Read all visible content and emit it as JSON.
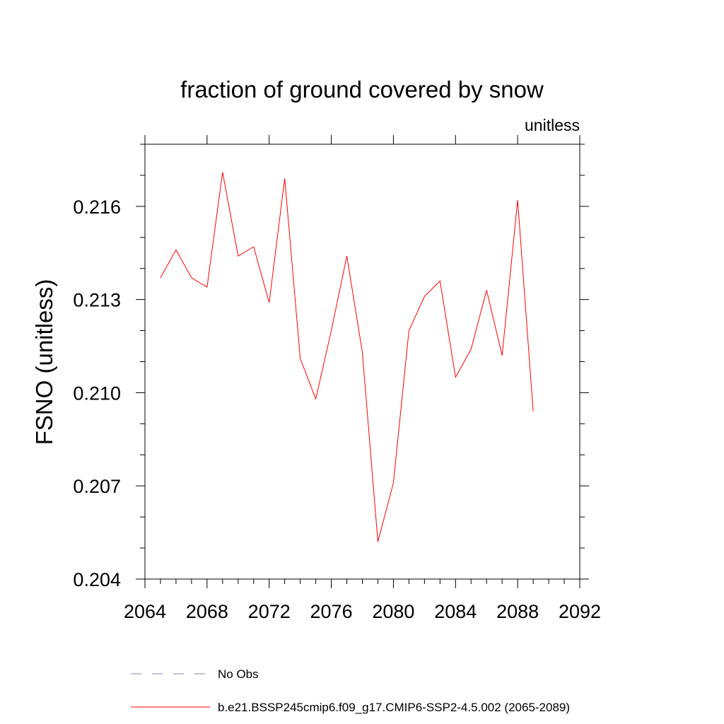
{
  "chart_data": {
    "type": "line",
    "title": "fraction of ground covered by snow",
    "subtitle": "unitless",
    "xlabel": "",
    "ylabel": "FSNO  (unitless)",
    "xlim": [
      2064,
      2092
    ],
    "ylim": [
      0.204,
      0.218
    ],
    "xticks": [
      2064,
      2068,
      2072,
      2076,
      2080,
      2084,
      2088,
      2092
    ],
    "xtick_labels": [
      "2064",
      "2068",
      "2072",
      "2076",
      "2080",
      "2084",
      "2088",
      "2092"
    ],
    "yticks": [
      0.204,
      0.207,
      0.21,
      0.213,
      0.216
    ],
    "ytick_labels": [
      "0.204",
      "0.207",
      "0.210",
      "0.213",
      "0.216"
    ],
    "grid": false,
    "series": [
      {
        "name": "b.e21.BSSP245cmip6.f09_g17.CMIP6-SSP2-4.5.002 (2065-2089)",
        "color": "#ff0000",
        "x": [
          2065,
          2066,
          2067,
          2068,
          2069,
          2070,
          2071,
          2072,
          2073,
          2074,
          2075,
          2076,
          2077,
          2078,
          2079,
          2080,
          2081,
          2082,
          2083,
          2084,
          2085,
          2086,
          2087,
          2088,
          2089
        ],
        "y": [
          0.2137,
          0.2146,
          0.2137,
          0.2134,
          0.2171,
          0.2144,
          0.2147,
          0.2129,
          0.2169,
          0.2111,
          0.2098,
          0.212,
          0.2144,
          0.2113,
          0.2052,
          0.2071,
          0.212,
          0.2131,
          0.2136,
          0.2105,
          0.2114,
          0.2133,
          0.2112,
          0.2162,
          0.2094
        ]
      }
    ],
    "legend": {
      "position": "bottom",
      "entries": [
        {
          "label": "No Obs",
          "color": "#8080c0",
          "style": "dashed"
        },
        {
          "label": "b.e21.BSSP245cmip6.f09_g17.CMIP6-SSP2-4.5.002 (2065-2089)",
          "color": "#ff0000",
          "style": "solid"
        }
      ]
    }
  }
}
